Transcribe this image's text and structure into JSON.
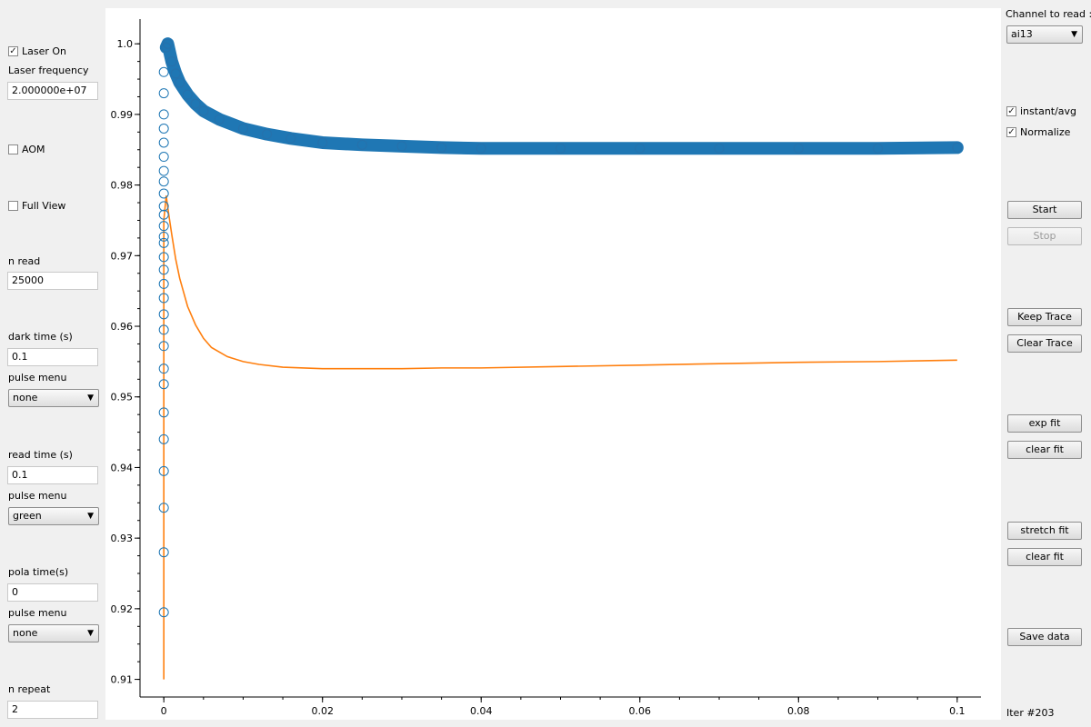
{
  "left_panel": {
    "laser_on": {
      "label": "Laser On",
      "checked": true
    },
    "laser_frequency": {
      "label": "Laser frequency",
      "value": "2.000000e+07"
    },
    "aom": {
      "label": "AOM",
      "checked": false
    },
    "full_view": {
      "label": "Full View",
      "checked": false
    },
    "n_read": {
      "label": "n read",
      "value": "25000"
    },
    "dark_time": {
      "label": "dark time (s)",
      "value": "0.1"
    },
    "pulse_menu_1": {
      "label": "pulse menu",
      "selected": "none"
    },
    "read_time": {
      "label": "read time (s)",
      "value": "0.1"
    },
    "pulse_menu_2": {
      "label": "pulse menu",
      "selected": "green"
    },
    "pola_time": {
      "label": "pola time(s)",
      "value": "0"
    },
    "pulse_menu_3": {
      "label": "pulse menu",
      "selected": "none"
    },
    "n_repeat": {
      "label": "n repeat",
      "value": "2"
    }
  },
  "right_panel": {
    "channel_label": "Channel to read :",
    "channel_selected": "ai13",
    "instant_avg": {
      "label": "instant/avg",
      "checked": true
    },
    "normalize": {
      "label": "Normalize",
      "checked": true
    },
    "start_label": "Start",
    "stop_label": "Stop",
    "keep_trace_label": "Keep Trace",
    "clear_trace_label": "Clear Trace",
    "exp_fit_label": "exp fit",
    "clear_fit_1_label": "clear fit",
    "stretch_fit_label": "stretch fit",
    "clear_fit_2_label": "clear fit",
    "save_data_label": "Save data",
    "iter_text": "Iter #203"
  },
  "colors": {
    "series_blue": "#1f77b4",
    "series_orange": "#ff7f0e",
    "plot_bg": "#ffffff",
    "axis": "#000000"
  },
  "chart_data": {
    "type": "scatter",
    "xlim": [
      -0.003,
      0.103
    ],
    "ylim": [
      0.9075,
      1.0035
    ],
    "x_ticks": [
      0,
      0.02,
      0.04,
      0.06,
      0.08,
      0.1
    ],
    "x_tick_labels": [
      "0",
      "0.02",
      "0.04",
      "0.06",
      "0.08",
      "0.1"
    ],
    "y_ticks": [
      0.91,
      0.92,
      0.93,
      0.94,
      0.95,
      0.96,
      0.97,
      0.98,
      0.99,
      1.0
    ],
    "y_tick_labels": [
      "0.91",
      "0.92",
      "0.93",
      "0.94",
      "0.95",
      "0.96",
      "0.97",
      "0.98",
      "0.99",
      "1.0"
    ],
    "series": [
      {
        "color": "#1f77b4",
        "marker": "open-circle",
        "x": [
          0,
          0,
          0,
          0,
          0,
          0,
          0,
          0,
          0,
          0,
          0,
          0,
          0,
          0,
          0,
          0,
          0,
          0,
          0,
          0,
          0,
          0,
          0,
          0,
          0,
          0,
          0,
          0,
          0,
          0.0003,
          0.0005,
          0.001,
          0.0015,
          0.002,
          0.003,
          0.004,
          0.005,
          0.007,
          0.01,
          0.013,
          0.016,
          0.02,
          0.025,
          0.03,
          0.035,
          0.04,
          0.05,
          0.06,
          0.07,
          0.08,
          0.09,
          0.1
        ],
        "y": [
          0.9195,
          0.928,
          0.9343,
          0.9395,
          0.944,
          0.9478,
          0.9518,
          0.954,
          0.9572,
          0.9595,
          0.9617,
          0.964,
          0.966,
          0.968,
          0.9698,
          0.9718,
          0.9727,
          0.9742,
          0.9758,
          0.977,
          0.9788,
          0.9805,
          0.982,
          0.984,
          0.986,
          0.988,
          0.99,
          0.993,
          0.996,
          0.9995,
          1.0,
          0.9975,
          0.9958,
          0.9945,
          0.9928,
          0.9915,
          0.9905,
          0.9893,
          0.988,
          0.9872,
          0.9866,
          0.986,
          0.9857,
          0.9855,
          0.9853,
          0.9852,
          0.9852,
          0.9852,
          0.9852,
          0.9852,
          0.9852,
          0.9853
        ]
      },
      {
        "color": "#ff7f0e",
        "marker": "line",
        "x": [
          0,
          0,
          0,
          0.0003,
          0.0006,
          0.001,
          0.0015,
          0.002,
          0.003,
          0.004,
          0.005,
          0.006,
          0.008,
          0.01,
          0.012,
          0.015,
          0.02,
          0.025,
          0.03,
          0.035,
          0.04,
          0.05,
          0.06,
          0.07,
          0.08,
          0.09,
          0.1
        ],
        "y": [
          0.91,
          0.94,
          0.975,
          0.9785,
          0.976,
          0.973,
          0.9695,
          0.9668,
          0.9628,
          0.9602,
          0.9583,
          0.957,
          0.9557,
          0.955,
          0.9546,
          0.9542,
          0.954,
          0.954,
          0.954,
          0.9541,
          0.9541,
          0.9543,
          0.9545,
          0.9547,
          0.9549,
          0.955,
          0.9552
        ]
      }
    ]
  }
}
